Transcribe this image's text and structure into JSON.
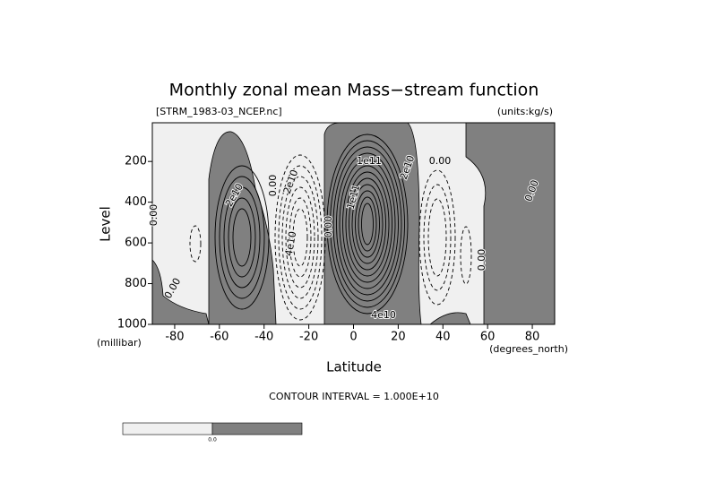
{
  "chart_data": {
    "type": "contour",
    "title": "Monthly zonal mean Mass−stream function",
    "subtitle_left": "[STRM_1983-03_NCEP.nc]",
    "subtitle_right": "(units:kg/s)",
    "xlabel": "Latitude",
    "ylabel": "Level",
    "x_unit": "(degrees_north)",
    "y_unit": "(millibar)",
    "xlim": [
      -90,
      90
    ],
    "xticks": [
      -80,
      -60,
      -40,
      -20,
      0,
      20,
      40,
      60,
      80
    ],
    "ylim": [
      1000,
      10
    ],
    "yticks": [
      200,
      400,
      600,
      800,
      1000
    ],
    "note": "CONTOUR INTERVAL = 1.000E+10",
    "contour_labels": [
      "0.00",
      "0.00",
      "2e10",
      "0.00",
      "2e10",
      "4e10",
      "0.00",
      "1e11",
      "1e11",
      "2e10",
      "4e10",
      "0.00",
      "0.00",
      "0.00"
    ],
    "colors": [
      "#f0f0f0",
      "#808080"
    ],
    "colorbar_label": "0.0"
  }
}
